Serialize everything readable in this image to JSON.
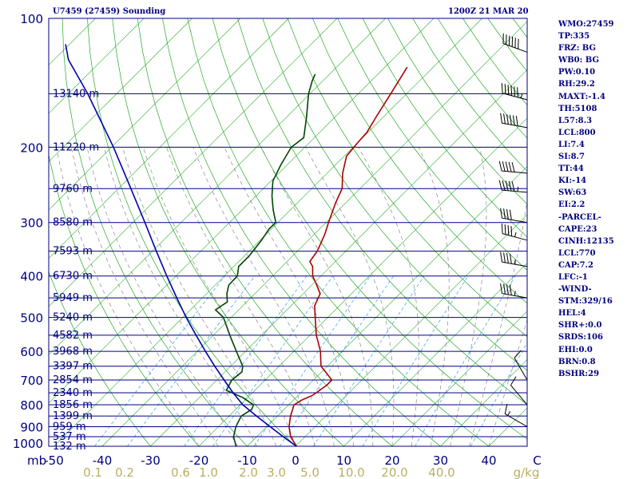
{
  "header": {
    "station": "U7459 (27459) Sounding",
    "time": "1200Z 21 MAR 20"
  },
  "stats": [
    "WMO:27459",
    "TP:335",
    "FRZ: BG",
    "WB0: BG",
    "PW:0.10",
    "RH:29.2",
    "MAXT:-1.4",
    "TH:5108",
    "L57:8.3",
    "LCL:800",
    "LI:7.4",
    "SI:8.7",
    "TT:44",
    "KI:-14",
    "SW:63",
    "EI:2.2",
    "-PARCEL-",
    "CAPE:23",
    "CINH:12135",
    "LCL:770",
    "CAP:7.2",
    "LFC:-1",
    "-WIND-",
    "STM:329/16",
    "HEL:4",
    "SHR+:0.0",
    "SRDS:106",
    "EHI:0.0",
    "BRN:0.8",
    "BSHR:29"
  ],
  "colors": {
    "isobar": "#000080",
    "dry_adiabat": "#22aa22",
    "moist_adiabat": "#888888",
    "mixing_ratio": "#44aaee",
    "temperature": "#aa0000",
    "dewpoint": "#004400",
    "parcel": "#0000aa",
    "label_text": "#000080",
    "mixing_label": "#b8b060"
  },
  "chart_data": {
    "type": "line",
    "title": "",
    "pressure_levels": [
      100,
      200,
      300,
      400,
      500,
      600,
      700,
      800,
      900,
      1000
    ],
    "pressure_units": "mb",
    "height_labels": [
      {
        "p": 150,
        "label": "13140 m"
      },
      {
        "p": 200,
        "label": "11220 m"
      },
      {
        "p": 250,
        "label": "9760 m"
      },
      {
        "p": 300,
        "label": "8580 m"
      },
      {
        "p": 350,
        "label": "7593 m"
      },
      {
        "p": 400,
        "label": "6730 m"
      },
      {
        "p": 450,
        "label": "5949 m"
      },
      {
        "p": 500,
        "label": "5240 m"
      },
      {
        "p": 550,
        "label": "4582 m"
      },
      {
        "p": 600,
        "label": "3968 m"
      },
      {
        "p": 650,
        "label": "3397 m"
      },
      {
        "p": 700,
        "label": "2854 m"
      },
      {
        "p": 750,
        "label": "2340 m"
      },
      {
        "p": 800,
        "label": "1856 m"
      },
      {
        "p": 850,
        "label": "1399 m"
      },
      {
        "p": 900,
        "label": "959 m"
      },
      {
        "p": 950,
        "label": "537 m"
      },
      {
        "p": 1000,
        "label": "132 m"
      }
    ],
    "temp_ticks": [
      -50,
      -40,
      -30,
      -20,
      -10,
      0,
      10,
      20,
      30,
      40,
      50
    ],
    "temp_tick_labels": [
      "-50",
      "-40",
      "-30",
      "-20",
      "-10",
      "0",
      "10",
      "20",
      "30",
      "40",
      "C"
    ],
    "mixing_ratio_labels": [
      "0.1",
      "0.2",
      "0.6",
      "1.0",
      "2.0",
      "3.0",
      "5.0",
      "10.0",
      "20.0",
      "40.0",
      "g/kg"
    ],
    "series": [
      {
        "label": "temperature",
        "points": [
          {
            "p": 1000,
            "t": 0.2
          },
          {
            "p": 950,
            "t": -3.0
          },
          {
            "p": 900,
            "t": -5.4
          },
          {
            "p": 850,
            "t": -7.3
          },
          {
            "p": 800,
            "t": -8.9
          },
          {
            "p": 780,
            "t": -8.3
          },
          {
            "p": 760,
            "t": -7.0
          },
          {
            "p": 720,
            "t": -6.2
          },
          {
            "p": 700,
            "t": -6.2
          },
          {
            "p": 680,
            "t": -8.2
          },
          {
            "p": 650,
            "t": -11.3
          },
          {
            "p": 600,
            "t": -14.5
          },
          {
            "p": 550,
            "t": -18.7
          },
          {
            "p": 500,
            "t": -22.6
          },
          {
            "p": 470,
            "t": -25.1
          },
          {
            "p": 440,
            "t": -26.5
          },
          {
            "p": 420,
            "t": -29.0
          },
          {
            "p": 400,
            "t": -31.7
          },
          {
            "p": 380,
            "t": -33.7
          },
          {
            "p": 370,
            "t": -35.3
          },
          {
            "p": 350,
            "t": -35.9
          },
          {
            "p": 320,
            "t": -37.8
          },
          {
            "p": 300,
            "t": -39.5
          },
          {
            "p": 270,
            "t": -42.1
          },
          {
            "p": 250,
            "t": -43.7
          },
          {
            "p": 230,
            "t": -46.8
          },
          {
            "p": 210,
            "t": -49.5
          },
          {
            "p": 195,
            "t": -50.0
          },
          {
            "p": 185,
            "t": -50.2
          },
          {
            "p": 170,
            "t": -51.5
          },
          {
            "p": 150,
            "t": -53.3
          },
          {
            "p": 130,
            "t": -55.4
          }
        ]
      },
      {
        "label": "dewpoint",
        "points": [
          {
            "p": 1000,
            "t": -12.3
          },
          {
            "p": 950,
            "t": -14.8
          },
          {
            "p": 900,
            "t": -16.4
          },
          {
            "p": 850,
            "t": -17.5
          },
          {
            "p": 820,
            "t": -16.7
          },
          {
            "p": 800,
            "t": -17.3
          },
          {
            "p": 770,
            "t": -20.9
          },
          {
            "p": 740,
            "t": -25.9
          },
          {
            "p": 700,
            "t": -26.9
          },
          {
            "p": 670,
            "t": -26.5
          },
          {
            "p": 650,
            "t": -27.5
          },
          {
            "p": 600,
            "t": -31.9
          },
          {
            "p": 550,
            "t": -36.6
          },
          {
            "p": 500,
            "t": -41.6
          },
          {
            "p": 480,
            "t": -44.8
          },
          {
            "p": 460,
            "t": -44.0
          },
          {
            "p": 440,
            "t": -45.8
          },
          {
            "p": 420,
            "t": -47.2
          },
          {
            "p": 400,
            "t": -47.3
          },
          {
            "p": 380,
            "t": -49.0
          },
          {
            "p": 360,
            "t": -49.0
          },
          {
            "p": 330,
            "t": -49.7
          },
          {
            "p": 310,
            "t": -50.5
          },
          {
            "p": 300,
            "t": -50.4
          },
          {
            "p": 280,
            "t": -53.6
          },
          {
            "p": 260,
            "t": -56.7
          },
          {
            "p": 240,
            "t": -59.6
          },
          {
            "p": 220,
            "t": -61.3
          },
          {
            "p": 200,
            "t": -62.8
          },
          {
            "p": 190,
            "t": -62.2
          },
          {
            "p": 170,
            "t": -65.9
          },
          {
            "p": 150,
            "t": -70.3
          },
          {
            "p": 140,
            "t": -72.2
          },
          {
            "p": 135,
            "t": -73.0
          }
        ]
      },
      {
        "label": "parcel",
        "points": [
          {
            "p": 1000,
            "t": 0.2
          },
          {
            "p": 950,
            "t": -4.5
          },
          {
            "p": 900,
            "t": -9.3
          },
          {
            "p": 850,
            "t": -14.3
          },
          {
            "p": 800,
            "t": -19.5
          },
          {
            "p": 750,
            "t": -24.0
          },
          {
            "p": 700,
            "t": -28.5
          },
          {
            "p": 650,
            "t": -33.3
          },
          {
            "p": 600,
            "t": -38.3
          },
          {
            "p": 550,
            "t": -43.6
          },
          {
            "p": 500,
            "t": -49.3
          },
          {
            "p": 450,
            "t": -55.3
          },
          {
            "p": 400,
            "t": -61.9
          },
          {
            "p": 350,
            "t": -69.2
          },
          {
            "p": 300,
            "t": -77.5
          },
          {
            "p": 250,
            "t": -87.4
          },
          {
            "p": 200,
            "t": -99.6
          },
          {
            "p": 150,
            "t": -116.0
          },
          {
            "p": 125,
            "t": -127.0
          },
          {
            "p": 115,
            "t": -130.8
          }
        ]
      }
    ],
    "wind_barbs": [
      {
        "p": 120,
        "dir": 290,
        "spd": 60
      },
      {
        "p": 155,
        "dir": 285,
        "spd": 55
      },
      {
        "p": 180,
        "dir": 280,
        "spd": 60
      },
      {
        "p": 230,
        "dir": 275,
        "spd": 50
      },
      {
        "p": 255,
        "dir": 275,
        "spd": 45
      },
      {
        "p": 300,
        "dir": 280,
        "spd": 40
      },
      {
        "p": 330,
        "dir": 285,
        "spd": 35
      },
      {
        "p": 380,
        "dir": 280,
        "spd": 35
      },
      {
        "p": 450,
        "dir": 280,
        "spd": 35
      },
      {
        "p": 700,
        "dir": 330,
        "spd": 10
      },
      {
        "p": 800,
        "dir": 320,
        "spd": 10
      },
      {
        "p": 900,
        "dir": 300,
        "spd": 5
      }
    ]
  }
}
